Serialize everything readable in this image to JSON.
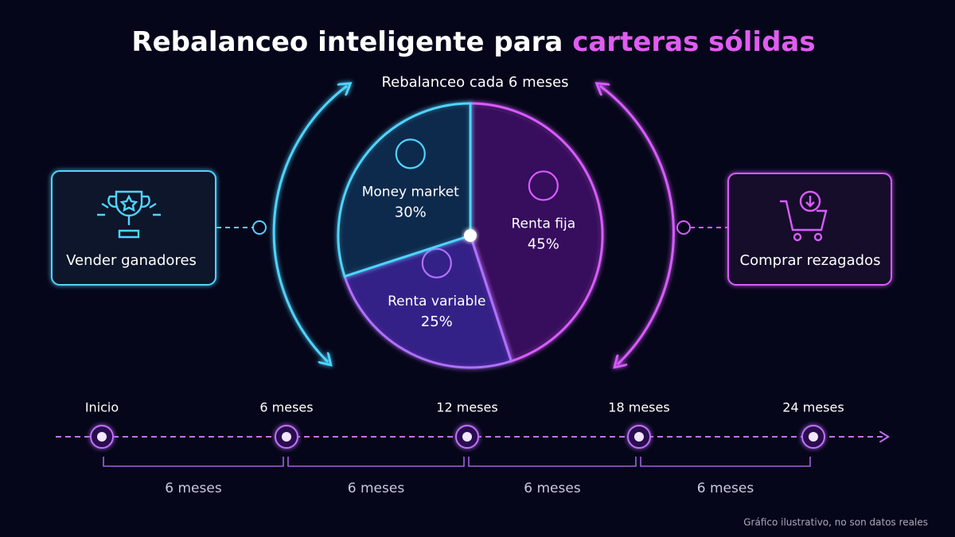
{
  "chart_data": {
    "type": "pie",
    "title": "Rebalanceo inteligente para",
    "title_highlight": "carteras sólidas",
    "subtitle": "Rebalanceo cada 6 meses",
    "categories": [
      "Renta fija",
      "Renta variable",
      "Money market"
    ],
    "values": [
      45,
      25,
      30
    ],
    "value_labels": [
      "45%",
      "25%",
      "30%"
    ],
    "colors": [
      "#3a0f5e",
      "#35208a",
      "#0e2a4e"
    ],
    "stroke_colors": [
      "#d85cff",
      "#b070ff",
      "#4fd4ff"
    ]
  },
  "actions": {
    "sell": "Vender ganadores",
    "buy": "Comprar rezagados"
  },
  "timeline": {
    "milestones": [
      "Inicio",
      "6 meses",
      "12 meses",
      "18 meses",
      "24 meses"
    ],
    "intervals": [
      "6 meses",
      "6 meses",
      "6 meses",
      "6 meses"
    ]
  },
  "footnote": "Gráfico ilustrativo, no son datos reales"
}
